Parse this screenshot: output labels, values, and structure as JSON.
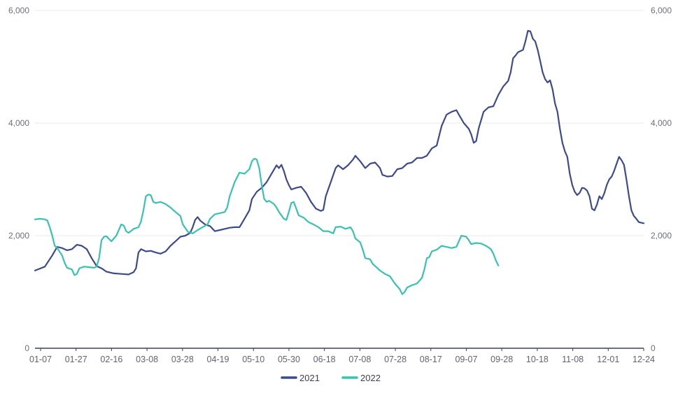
{
  "chart_data": {
    "type": "line",
    "title": "",
    "xlabel": "",
    "ylabel": "",
    "ylim": [
      0,
      6000
    ],
    "y_ticks": [
      0,
      2000,
      4000,
      6000
    ],
    "y_tick_labels": [
      "0",
      "2,000",
      "4,000",
      "6,000"
    ],
    "dual_y_axis_same_scale": true,
    "grid": "horizontal",
    "legend_position": "bottom-center",
    "x_tick_labels": [
      "01-07",
      "01-27",
      "02-16",
      "03-08",
      "03-28",
      "04-19",
      "05-10",
      "05-30",
      "06-18",
      "07-08",
      "07-28",
      "08-17",
      "09-07",
      "09-28",
      "10-18",
      "11-08",
      "12-01",
      "12-24"
    ],
    "series": [
      {
        "name": "2021",
        "color": "#3d4a8e",
        "points": [
          [
            0,
            1380
          ],
          [
            4,
            1450
          ],
          [
            7,
            1650
          ],
          [
            9,
            1800
          ],
          [
            11,
            1780
          ],
          [
            13,
            1740
          ],
          [
            15,
            1760
          ],
          [
            17,
            1840
          ],
          [
            19,
            1820
          ],
          [
            21,
            1760
          ],
          [
            23,
            1600
          ],
          [
            25,
            1460
          ],
          [
            27,
            1420
          ],
          [
            29,
            1360
          ],
          [
            32,
            1330
          ],
          [
            35,
            1320
          ],
          [
            38,
            1310
          ],
          [
            40,
            1350
          ],
          [
            41,
            1420
          ],
          [
            42,
            1700
          ],
          [
            43,
            1760
          ],
          [
            45,
            1720
          ],
          [
            47,
            1730
          ],
          [
            49,
            1700
          ],
          [
            51,
            1680
          ],
          [
            53,
            1720
          ],
          [
            55,
            1820
          ],
          [
            57,
            1900
          ],
          [
            59,
            1980
          ],
          [
            61,
            2000
          ],
          [
            63,
            2050
          ],
          [
            64,
            2150
          ],
          [
            65,
            2280
          ],
          [
            66,
            2330
          ],
          [
            67,
            2270
          ],
          [
            69,
            2200
          ],
          [
            71,
            2170
          ],
          [
            73,
            2080
          ],
          [
            75,
            2100
          ],
          [
            77,
            2120
          ],
          [
            79,
            2140
          ],
          [
            81,
            2150
          ],
          [
            83,
            2150
          ],
          [
            85,
            2300
          ],
          [
            87,
            2450
          ],
          [
            88,
            2650
          ],
          [
            90,
            2780
          ],
          [
            92,
            2850
          ],
          [
            94,
            2950
          ],
          [
            96,
            3100
          ],
          [
            98,
            3250
          ],
          [
            99,
            3200
          ],
          [
            100,
            3260
          ],
          [
            101,
            3150
          ],
          [
            102,
            3000
          ],
          [
            103,
            2900
          ],
          [
            104,
            2820
          ],
          [
            106,
            2850
          ],
          [
            108,
            2870
          ],
          [
            110,
            2760
          ],
          [
            112,
            2600
          ],
          [
            114,
            2480
          ],
          [
            116,
            2440
          ],
          [
            117,
            2460
          ],
          [
            118,
            2700
          ],
          [
            120,
            2950
          ],
          [
            122,
            3200
          ],
          [
            123,
            3250
          ],
          [
            125,
            3180
          ],
          [
            127,
            3250
          ],
          [
            129,
            3350
          ],
          [
            130,
            3420
          ],
          [
            132,
            3320
          ],
          [
            134,
            3200
          ],
          [
            136,
            3280
          ],
          [
            138,
            3300
          ],
          [
            140,
            3200
          ],
          [
            141,
            3080
          ],
          [
            143,
            3050
          ],
          [
            145,
            3060
          ],
          [
            147,
            3180
          ],
          [
            149,
            3200
          ],
          [
            151,
            3280
          ],
          [
            153,
            3300
          ],
          [
            155,
            3380
          ],
          [
            157,
            3380
          ],
          [
            159,
            3420
          ],
          [
            161,
            3550
          ],
          [
            163,
            3600
          ],
          [
            165,
            3950
          ],
          [
            167,
            4150
          ],
          [
            169,
            4200
          ],
          [
            171,
            4230
          ],
          [
            172,
            4150
          ],
          [
            174,
            4000
          ],
          [
            176,
            3900
          ],
          [
            177,
            3800
          ],
          [
            178,
            3650
          ],
          [
            179,
            3680
          ],
          [
            180,
            3900
          ],
          [
            182,
            4200
          ],
          [
            184,
            4280
          ],
          [
            186,
            4300
          ],
          [
            188,
            4500
          ],
          [
            190,
            4650
          ],
          [
            192,
            4750
          ],
          [
            193,
            4900
          ],
          [
            194,
            5150
          ],
          [
            195,
            5200
          ],
          [
            196,
            5260
          ],
          [
            198,
            5300
          ],
          [
            199,
            5450
          ],
          [
            200,
            5640
          ],
          [
            201,
            5630
          ],
          [
            202,
            5500
          ],
          [
            203,
            5450
          ],
          [
            204,
            5300
          ],
          [
            205,
            5100
          ],
          [
            206,
            4900
          ],
          [
            207,
            4780
          ],
          [
            208,
            4720
          ],
          [
            209,
            4760
          ],
          [
            210,
            4600
          ],
          [
            211,
            4350
          ],
          [
            212,
            4200
          ],
          [
            213,
            3900
          ],
          [
            214,
            3650
          ],
          [
            215,
            3500
          ],
          [
            216,
            3400
          ],
          [
            217,
            3100
          ],
          [
            218,
            2900
          ],
          [
            219,
            2780
          ],
          [
            220,
            2720
          ],
          [
            221,
            2760
          ],
          [
            222,
            2850
          ],
          [
            223,
            2840
          ],
          [
            224,
            2800
          ],
          [
            225,
            2700
          ],
          [
            226,
            2480
          ],
          [
            227,
            2450
          ],
          [
            228,
            2550
          ],
          [
            229,
            2700
          ],
          [
            230,
            2650
          ],
          [
            231,
            2750
          ],
          [
            232,
            2900
          ],
          [
            233,
            3000
          ],
          [
            234,
            3050
          ],
          [
            235,
            3150
          ],
          [
            236,
            3280
          ],
          [
            237,
            3400
          ],
          [
            238,
            3340
          ],
          [
            239,
            3260
          ],
          [
            240,
            3000
          ],
          [
            241,
            2700
          ],
          [
            242,
            2450
          ],
          [
            243,
            2350
          ],
          [
            244,
            2300
          ],
          [
            245,
            2240
          ],
          [
            247,
            2220
          ]
        ]
      },
      {
        "name": "2022",
        "color": "#38c2b0",
        "points": [
          [
            0,
            2290
          ],
          [
            2,
            2300
          ],
          [
            4,
            2290
          ],
          [
            5,
            2270
          ],
          [
            6,
            2150
          ],
          [
            7,
            2000
          ],
          [
            8,
            1820
          ],
          [
            9,
            1780
          ],
          [
            11,
            1650
          ],
          [
            12,
            1520
          ],
          [
            13,
            1430
          ],
          [
            15,
            1400
          ],
          [
            16,
            1300
          ],
          [
            17,
            1320
          ],
          [
            18,
            1420
          ],
          [
            20,
            1450
          ],
          [
            22,
            1440
          ],
          [
            24,
            1430
          ],
          [
            25,
            1450
          ],
          [
            26,
            1600
          ],
          [
            27,
            1920
          ],
          [
            28,
            1980
          ],
          [
            29,
            1990
          ],
          [
            31,
            1900
          ],
          [
            33,
            2000
          ],
          [
            35,
            2200
          ],
          [
            36,
            2180
          ],
          [
            37,
            2080
          ],
          [
            38,
            2050
          ],
          [
            40,
            2120
          ],
          [
            42,
            2150
          ],
          [
            43,
            2250
          ],
          [
            44,
            2450
          ],
          [
            45,
            2700
          ],
          [
            46,
            2730
          ],
          [
            47,
            2720
          ],
          [
            48,
            2600
          ],
          [
            49,
            2580
          ],
          [
            51,
            2600
          ],
          [
            53,
            2560
          ],
          [
            55,
            2500
          ],
          [
            57,
            2420
          ],
          [
            59,
            2350
          ],
          [
            60,
            2200
          ],
          [
            62,
            2070
          ],
          [
            64,
            2040
          ],
          [
            66,
            2100
          ],
          [
            68,
            2150
          ],
          [
            70,
            2200
          ],
          [
            71,
            2300
          ],
          [
            73,
            2380
          ],
          [
            75,
            2400
          ],
          [
            77,
            2420
          ],
          [
            78,
            2500
          ],
          [
            79,
            2700
          ],
          [
            81,
            2950
          ],
          [
            83,
            3120
          ],
          [
            85,
            3100
          ],
          [
            87,
            3180
          ],
          [
            88,
            3320
          ],
          [
            89,
            3370
          ],
          [
            90,
            3350
          ],
          [
            91,
            3200
          ],
          [
            92,
            2900
          ],
          [
            93,
            2650
          ],
          [
            94,
            2600
          ],
          [
            95,
            2620
          ],
          [
            97,
            2560
          ],
          [
            98,
            2500
          ],
          [
            99,
            2420
          ],
          [
            101,
            2300
          ],
          [
            102,
            2280
          ],
          [
            103,
            2420
          ],
          [
            104,
            2580
          ],
          [
            105,
            2600
          ],
          [
            106,
            2480
          ],
          [
            107,
            2360
          ],
          [
            109,
            2320
          ],
          [
            111,
            2240
          ],
          [
            113,
            2200
          ],
          [
            115,
            2150
          ],
          [
            117,
            2080
          ],
          [
            119,
            2080
          ],
          [
            121,
            2040
          ],
          [
            122,
            2150
          ],
          [
            124,
            2160
          ],
          [
            126,
            2120
          ],
          [
            128,
            2150
          ],
          [
            129,
            2080
          ],
          [
            130,
            1950
          ],
          [
            132,
            1880
          ],
          [
            133,
            1750
          ],
          [
            134,
            1600
          ],
          [
            136,
            1580
          ],
          [
            137,
            1500
          ],
          [
            139,
            1420
          ],
          [
            140,
            1380
          ],
          [
            142,
            1320
          ],
          [
            144,
            1280
          ],
          [
            146,
            1150
          ],
          [
            148,
            1050
          ],
          [
            149,
            960
          ],
          [
            150,
            1000
          ],
          [
            151,
            1080
          ],
          [
            153,
            1120
          ],
          [
            155,
            1150
          ],
          [
            157,
            1250
          ],
          [
            158,
            1400
          ],
          [
            159,
            1600
          ],
          [
            160,
            1620
          ],
          [
            161,
            1720
          ],
          [
            163,
            1750
          ],
          [
            165,
            1820
          ],
          [
            167,
            1800
          ],
          [
            169,
            1780
          ],
          [
            171,
            1800
          ],
          [
            172,
            1900
          ],
          [
            173,
            2000
          ],
          [
            175,
            1980
          ],
          [
            176,
            1920
          ],
          [
            177,
            1850
          ],
          [
            179,
            1870
          ],
          [
            181,
            1860
          ],
          [
            183,
            1820
          ],
          [
            185,
            1760
          ],
          [
            186,
            1680
          ],
          [
            187,
            1560
          ],
          [
            188,
            1470
          ]
        ]
      }
    ]
  },
  "legend": [
    {
      "label": "2021",
      "color": "#3d4a8e"
    },
    {
      "label": "2022",
      "color": "#38c2b0"
    }
  ]
}
